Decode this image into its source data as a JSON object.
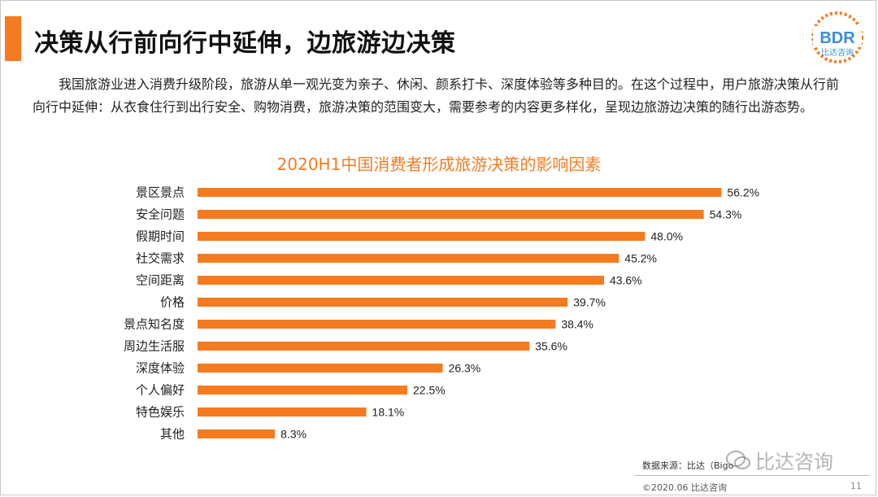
{
  "page": {
    "title": "决策从行前向行中延伸，边旅游边决策",
    "intro": "我国旅游业进入消费升级阶段，旅游从单一观光变为亲子、休闲、颜系打卡、深度体验等多种目的。在这个过程中，用户旅游决策从行前向行中延伸：从衣食住行到出行安全、购物消费，旅游决策的范围变大，需要参考的内容更多样化，呈现边旅游边决策的随行出游态势。"
  },
  "logo": {
    "text": "BDR",
    "subtext": "比达咨询"
  },
  "chart_data": {
    "type": "bar",
    "orientation": "horizontal",
    "title": "2020H1中国消费者形成旅游决策的影响因素",
    "categories": [
      "景区景点",
      "安全问题",
      "假期时间",
      "社交需求",
      "空间距离",
      "价格",
      "景点知名度",
      "周边生活服",
      "深度体验",
      "个人偏好",
      "特色娱乐",
      "其他"
    ],
    "values": [
      56.2,
      54.3,
      48.0,
      45.2,
      43.6,
      39.7,
      38.4,
      35.6,
      26.3,
      22.5,
      18.1,
      8.3
    ],
    "labels": [
      "56.2%",
      "54.3%",
      "48.0%",
      "45.2%",
      "43.6%",
      "39.7%",
      "38.4%",
      "35.6%",
      "26.3%",
      "22.5%",
      "18.1%",
      "8.3%"
    ],
    "xlim": [
      0,
      60
    ],
    "color": "#f47b20"
  },
  "footer": {
    "source": "数据来源：比达（Bigo",
    "copyright": "©2020.06  比达咨询",
    "page_number": "11",
    "watermark": "比达咨询"
  }
}
